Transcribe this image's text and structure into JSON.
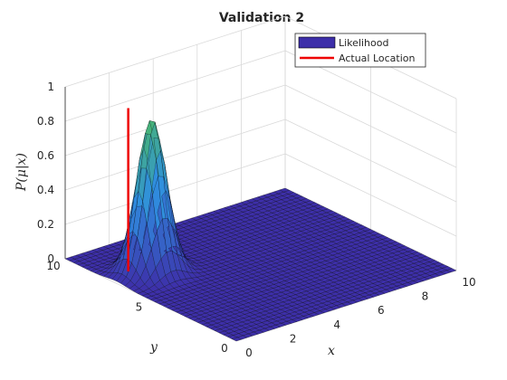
{
  "chart_data": {
    "type": "surface",
    "title": "Validation 2",
    "xlabel": "x",
    "ylabel": "y",
    "zlabel": "P(μ|x)",
    "xlim": [
      0,
      10
    ],
    "ylim": [
      0,
      10
    ],
    "zlim": [
      0,
      1
    ],
    "x_ticks": [
      "0",
      "2",
      "4",
      "6",
      "8",
      "10"
    ],
    "y_ticks": [
      "0",
      "5",
      "10"
    ],
    "z_ticks": [
      "0",
      "0.2",
      "0.4",
      "0.6",
      "0.8",
      "1"
    ],
    "grid": true,
    "legend_position": "top-right",
    "series": [
      {
        "name": "Likelihood",
        "kind": "surface",
        "grid_x": [
          0,
          10,
          41
        ],
        "grid_y": [
          0,
          10,
          41
        ],
        "peak": {
          "x": 1.6,
          "y": 7.0,
          "z": 0.9
        },
        "spread": 0.55,
        "colors": {
          "low": "#3d2fa9",
          "mid": "#2f8fe0",
          "high": "#4ab86a"
        }
      },
      {
        "name": "Actual Location",
        "kind": "line",
        "color": "#ee0000",
        "x": [
          1.0,
          1.0
        ],
        "y": [
          7.6,
          7.6
        ],
        "z": [
          0,
          0.95
        ]
      }
    ]
  }
}
